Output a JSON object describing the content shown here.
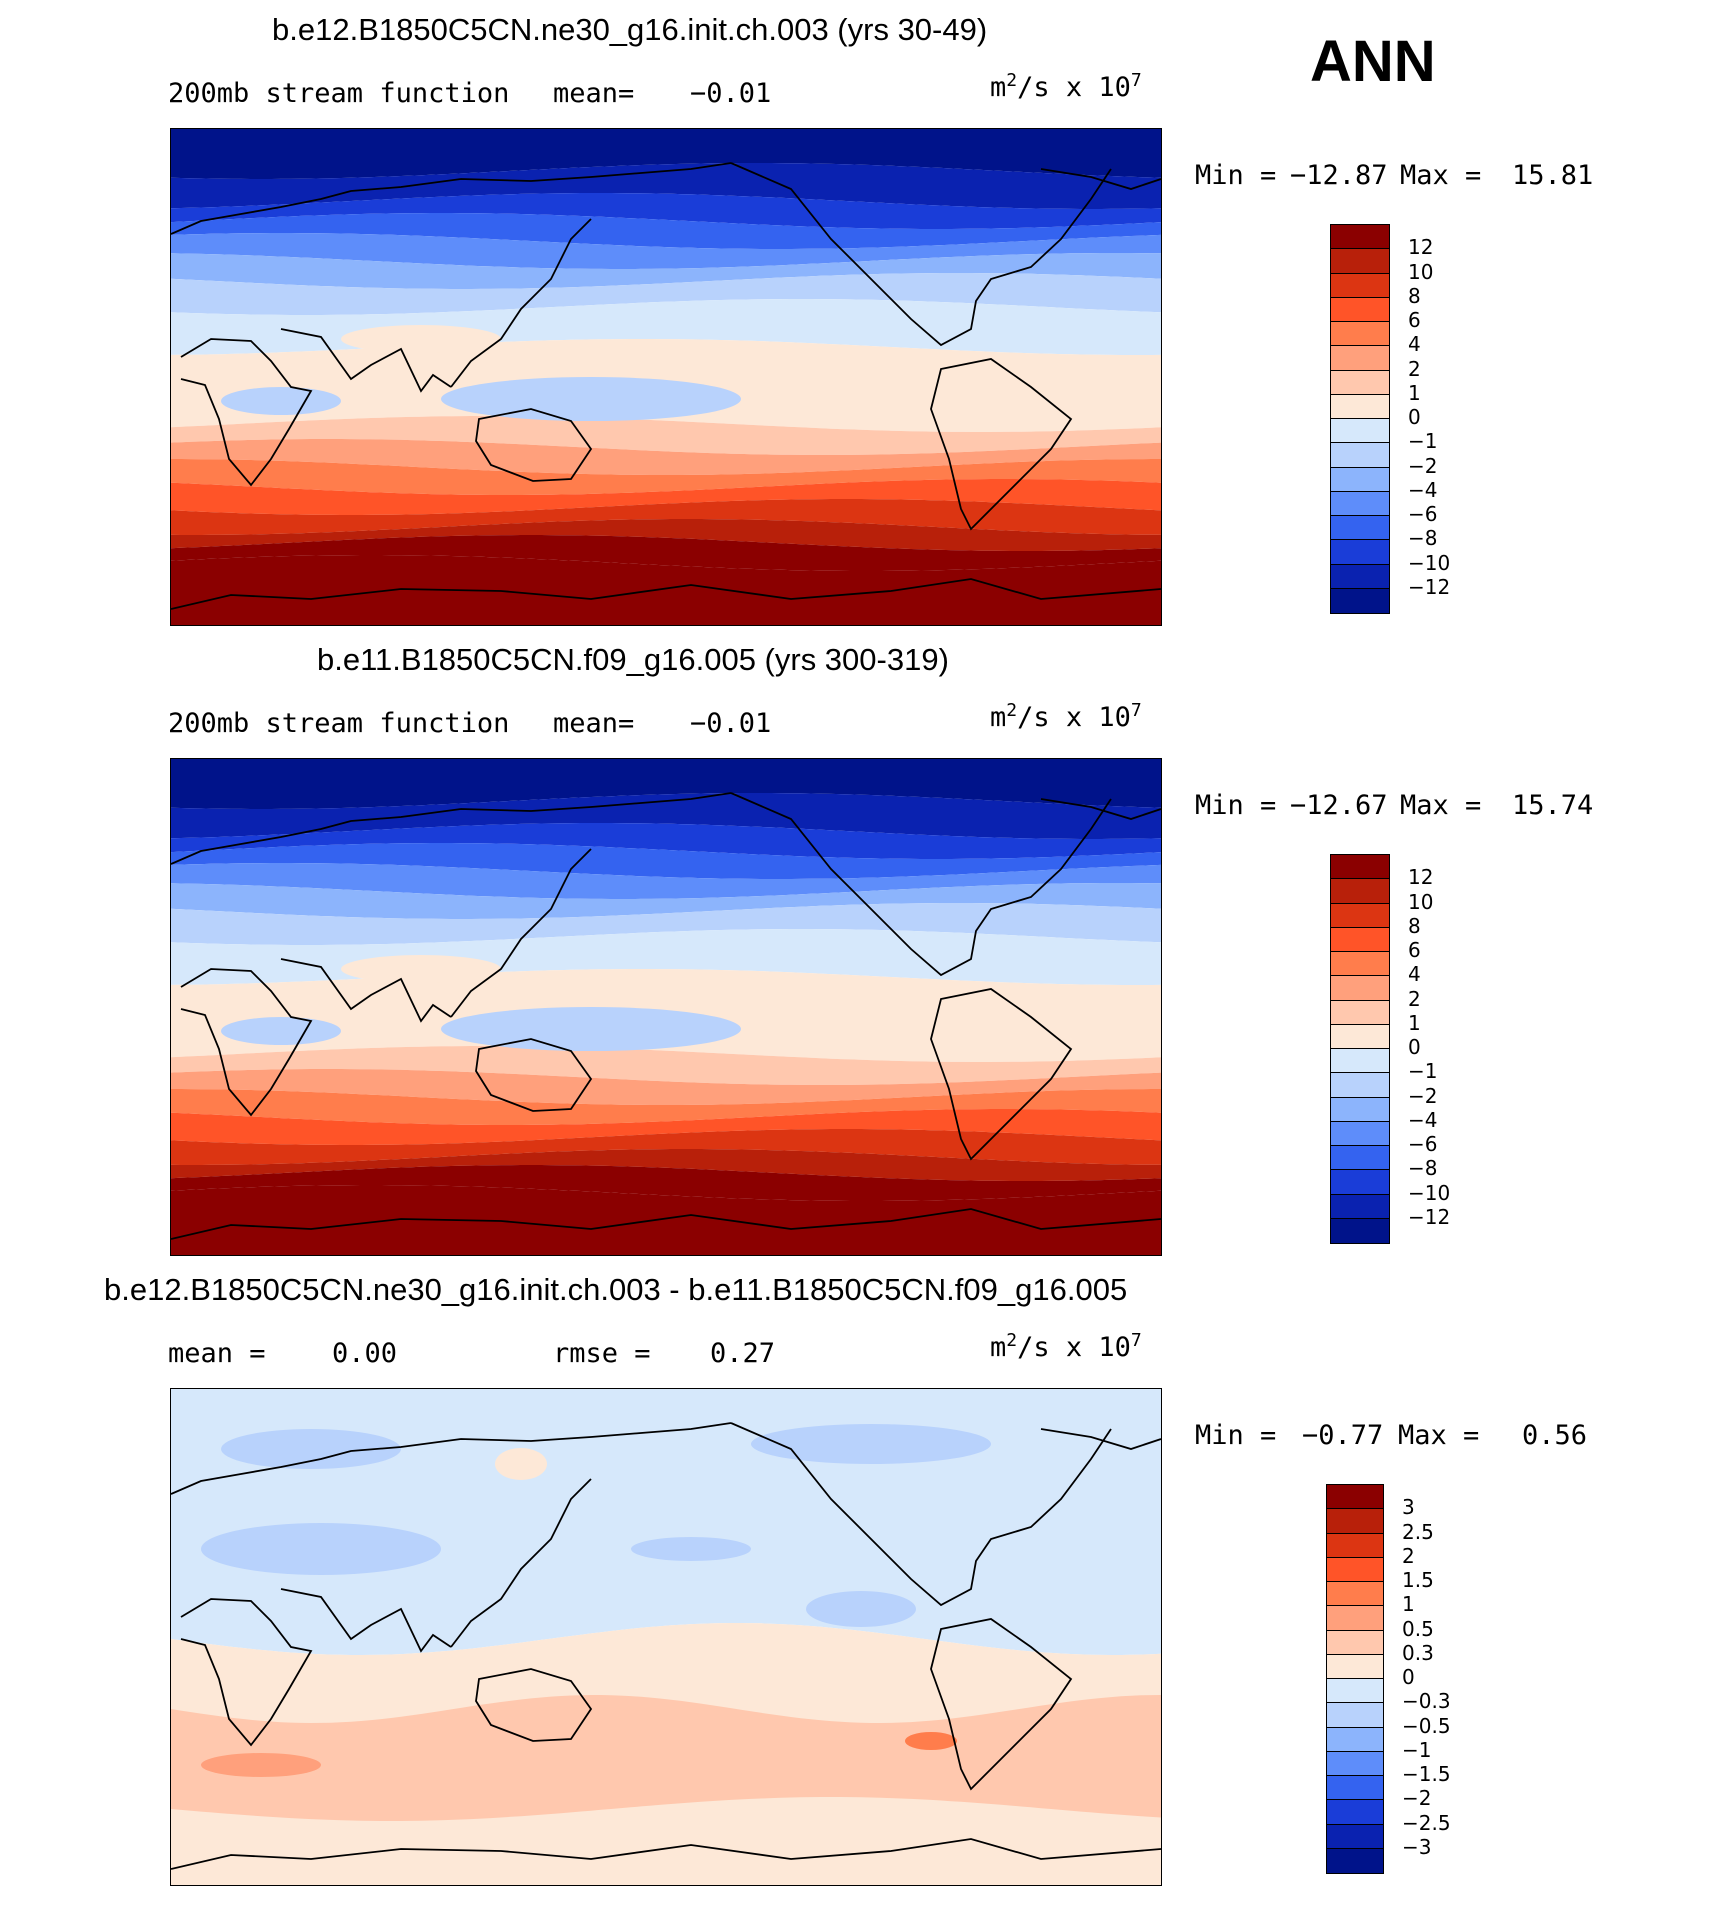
{
  "season": "ANN",
  "units": {
    "base": "m",
    "exp": "2",
    "rest": "/s x 10",
    "exp2": "7"
  },
  "panels": [
    {
      "id": "case",
      "title": "b.e12.B1850C5CN.ne30_g16.init.ch.003 (yrs 30-49)",
      "left_label": "200mb stream function",
      "mean_label": "mean=",
      "mean_value": "−0.01",
      "rmse_label": "",
      "rmse_value": "",
      "min_label": "Min =",
      "min_value": "−12.87",
      "max_label": "Max =",
      "max_value": "15.81",
      "contour_levels": [
        "12",
        "10",
        "8",
        "6",
        "4",
        "2",
        "1",
        "0",
        "−1",
        "−2",
        "−4",
        "−6",
        "−8",
        "−10",
        "−12"
      ],
      "colors": [
        "#8b0000",
        "#b8200a",
        "#dc3512",
        "#ff5428",
        "#ff7d4c",
        "#ffa07c",
        "#ffc8ae",
        "#fde8d7",
        "#d6e8fb",
        "#b8d2fc",
        "#8cb4fc",
        "#5e8dfa",
        "#3463f0",
        "#1a3dd8",
        "#0a22b0",
        "#00138a"
      ],
      "map_profile": "full"
    },
    {
      "id": "control",
      "title": "b.e11.B1850C5CN.f09_g16.005 (yrs 300-319)",
      "left_label": "200mb stream function",
      "mean_label": "mean=",
      "mean_value": "−0.01",
      "rmse_label": "",
      "rmse_value": "",
      "min_label": "Min =",
      "min_value": "−12.67",
      "max_label": "Max =",
      "max_value": "15.74",
      "contour_levels": [
        "12",
        "10",
        "8",
        "6",
        "4",
        "2",
        "1",
        "0",
        "−1",
        "−2",
        "−4",
        "−6",
        "−8",
        "−10",
        "−12"
      ],
      "colors": [
        "#8b0000",
        "#b8200a",
        "#dc3512",
        "#ff5428",
        "#ff7d4c",
        "#ffa07c",
        "#ffc8ae",
        "#fde8d7",
        "#d6e8fb",
        "#b8d2fc",
        "#8cb4fc",
        "#5e8dfa",
        "#3463f0",
        "#1a3dd8",
        "#0a22b0",
        "#00138a"
      ],
      "map_profile": "full"
    },
    {
      "id": "difference",
      "title": "b.e12.B1850C5CN.ne30_g16.init.ch.003 - b.e11.B1850C5CN.f09_g16.005",
      "left_label": "mean =",
      "mean_label": "",
      "mean_value": "0.00",
      "rmse_label": "rmse =",
      "rmse_value": "0.27",
      "min_label": "Min =",
      "min_value": "−0.77",
      "max_label": "Max =",
      "max_value": "0.56",
      "contour_levels": [
        "3",
        "2.5",
        "2",
        "1.5",
        "1",
        "0.5",
        "0.3",
        "0",
        "−0.3",
        "−0.5",
        "−1",
        "−1.5",
        "−2",
        "−2.5",
        "−3"
      ],
      "colors": [
        "#8b0000",
        "#b8200a",
        "#dc3512",
        "#ff5428",
        "#ff7d4c",
        "#ffa07c",
        "#ffc8ae",
        "#fde8d7",
        "#d6e8fb",
        "#b8d2fc",
        "#8cb4fc",
        "#5e8dfa",
        "#3463f0",
        "#1a3dd8",
        "#0a22b0",
        "#00138a"
      ],
      "map_profile": "diff"
    }
  ]
}
